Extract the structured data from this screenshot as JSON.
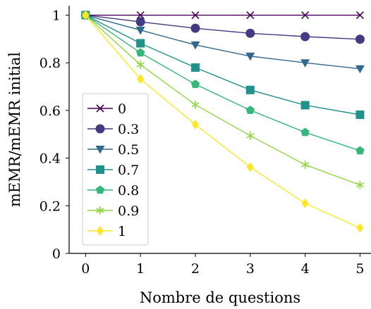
{
  "chart_data": {
    "type": "line",
    "title": "",
    "xlabel": "Nombre de questions",
    "ylabel": "mEMR/mEMR initial",
    "x": [
      0,
      1,
      2,
      3,
      4,
      5
    ],
    "xlim": [
      -0.3,
      5.2
    ],
    "ylim": [
      0,
      1.04
    ],
    "xticks": [
      "0",
      "1",
      "2",
      "3",
      "4",
      "5"
    ],
    "yticks": [
      "0",
      "0.2",
      "0.4",
      "0.6",
      "0.8",
      "1"
    ],
    "grid": false,
    "legend_position": "lower-left",
    "series": [
      {
        "name": "0",
        "marker": "x",
        "color": "#440154",
        "values": [
          1.0,
          1.0,
          1.0,
          1.0,
          1.0,
          1.0
        ]
      },
      {
        "name": "0.3",
        "marker": "circle",
        "color": "#443983",
        "values": [
          1.0,
          0.972,
          0.945,
          0.924,
          0.91,
          0.899
        ]
      },
      {
        "name": "0.5",
        "marker": "triangle",
        "color": "#31688e",
        "values": [
          1.0,
          0.937,
          0.875,
          0.828,
          0.8,
          0.775
        ]
      },
      {
        "name": "0.7",
        "marker": "square",
        "color": "#21918c",
        "values": [
          1.0,
          0.882,
          0.78,
          0.686,
          0.622,
          0.582
        ]
      },
      {
        "name": "0.8",
        "marker": "pentagon",
        "color": "#35b779",
        "values": [
          1.0,
          0.842,
          0.71,
          0.601,
          0.508,
          0.431
        ]
      },
      {
        "name": "0.9",
        "marker": "star",
        "color": "#90d743",
        "values": [
          1.0,
          0.792,
          0.624,
          0.494,
          0.372,
          0.287
        ]
      },
      {
        "name": "1",
        "marker": "diamond",
        "color": "#fde725",
        "values": [
          1.0,
          0.732,
          0.541,
          0.362,
          0.21,
          0.107
        ]
      }
    ]
  }
}
